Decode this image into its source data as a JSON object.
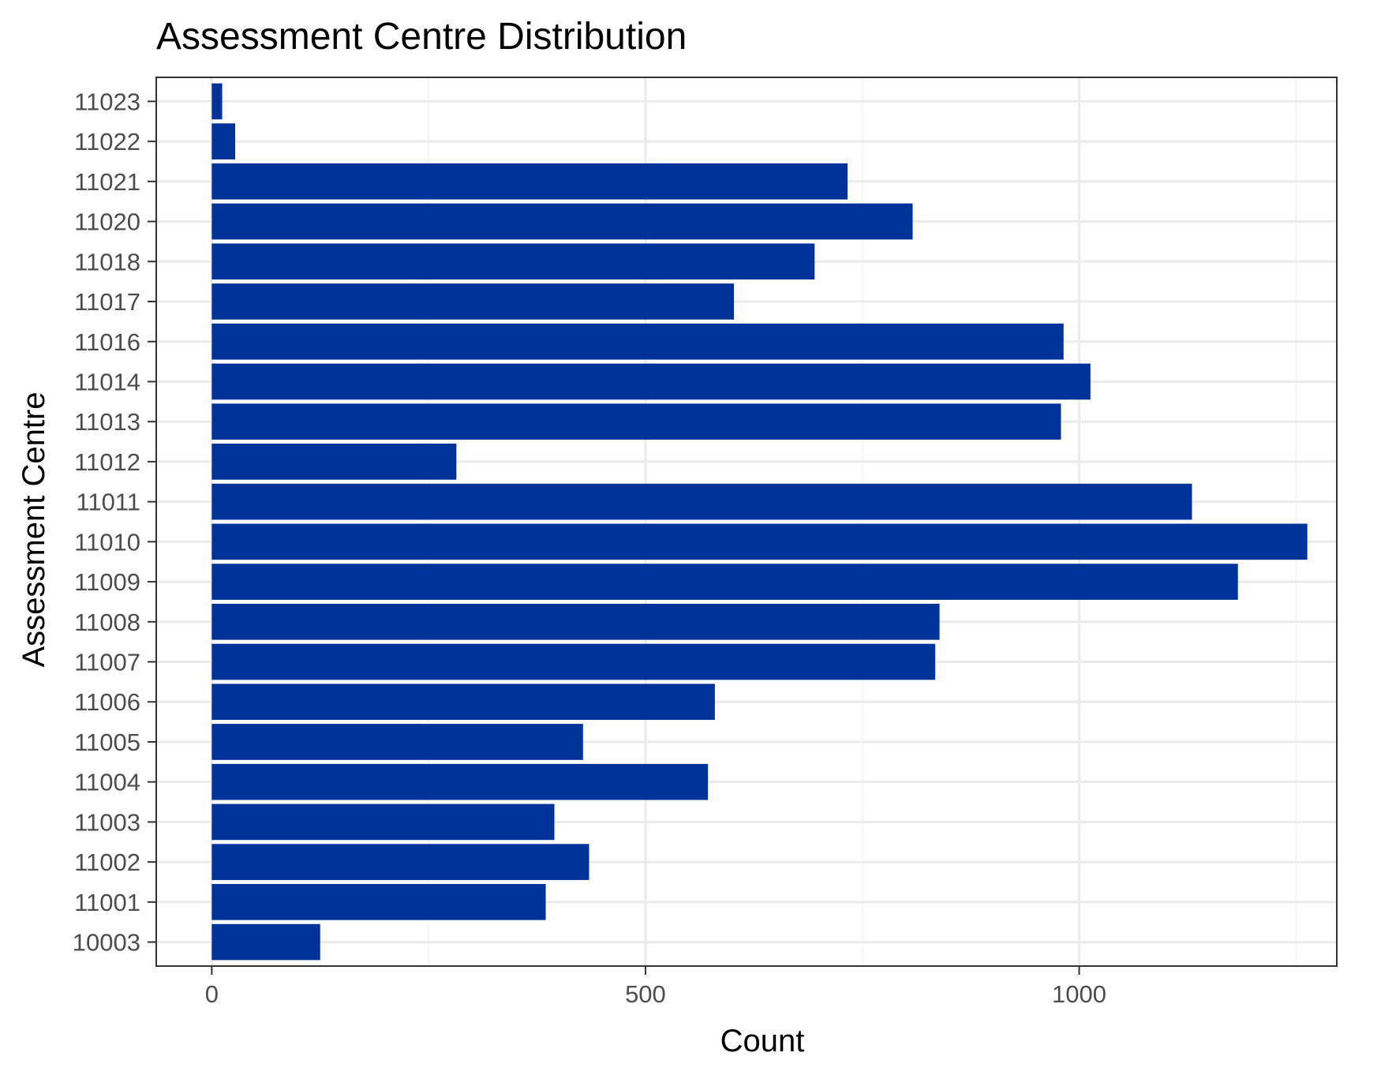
{
  "chart_data": {
    "type": "bar",
    "orientation": "horizontal",
    "title": "Assessment Centre Distribution",
    "xlabel": "Count",
    "ylabel": "Assessment Centre",
    "categories": [
      "10003",
      "11001",
      "11002",
      "11003",
      "11004",
      "11005",
      "11006",
      "11007",
      "11008",
      "11009",
      "11010",
      "11011",
      "11012",
      "11013",
      "11014",
      "11016",
      "11017",
      "11018",
      "11020",
      "11021",
      "11022",
      "11023"
    ],
    "values": [
      125,
      385,
      435,
      395,
      572,
      428,
      580,
      834,
      839,
      1183,
      1263,
      1130,
      282,
      979,
      1013,
      982,
      602,
      695,
      808,
      733,
      27,
      12
    ],
    "xlim": [
      -64,
      1297
    ],
    "xticks": [
      0,
      500,
      1000
    ],
    "xtick_labels": [
      "0",
      "500",
      "1000"
    ],
    "grid": true,
    "colors": {
      "bar": "#003399",
      "grid_major": "#ebebeb",
      "grid_minor": "#f5f5f5",
      "panel_border": "#333333"
    }
  }
}
